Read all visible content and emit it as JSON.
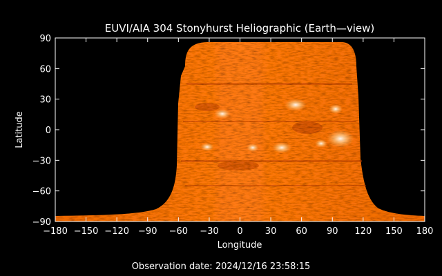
{
  "figure": {
    "title": "EUVI/AIA 304 Stonyhurst Heliographic (Earth—view)",
    "x_axis_label": "Longitude",
    "y_axis_label": "Latitude",
    "observation_label": "Observation date:",
    "observation_date": "2024/12/16 23:58:15",
    "x_ticks": [
      "−180",
      "−150",
      "−120",
      "−90",
      "−60",
      "−30",
      "0",
      "30",
      "60",
      "90",
      "120",
      "150",
      "180"
    ],
    "y_ticks": [
      "90",
      "60",
      "30",
      "0",
      "−30",
      "−60",
      "−90"
    ],
    "x_range": [
      -180,
      180
    ],
    "y_range": [
      -90,
      90
    ],
    "colors": {
      "background": "#000000",
      "axes": "#ffffff",
      "solar_disk_base": "#e85a00",
      "solar_disk_mid": "#ff7a10",
      "solar_disk_bright": "#ffd9a0",
      "solar_disk_dark": "#b33a00"
    }
  }
}
